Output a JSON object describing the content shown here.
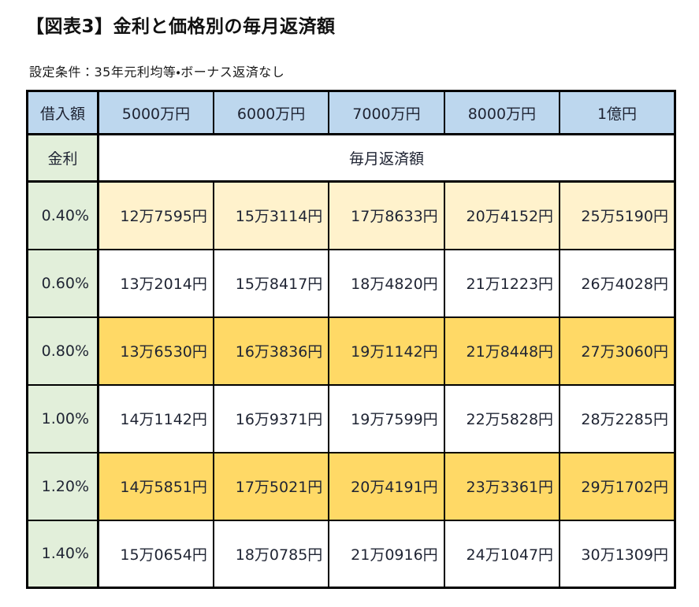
{
  "page": {
    "title": "【図表3】金利と価格別の毎月返済額",
    "subtitle": "設定条件：35年元利均等・ボーナス返済なし"
  },
  "table": {
    "corner_header": "借入額",
    "column_headers": [
      "5000万円",
      "6000万円",
      "7000万円",
      "8000万円",
      "1億円"
    ],
    "rate_header": "金利",
    "merged_subheader": "毎月返済額",
    "rows": [
      {
        "rate": "0.40%",
        "highlight": "cream",
        "values": [
          "12万7595円",
          "15万3114円",
          "17万8633円",
          "20万4152円",
          "25万5190円"
        ]
      },
      {
        "rate": "0.60%",
        "highlight": "none",
        "values": [
          "13万2014円",
          "15万8417円",
          "18万4820円",
          "21万1223円",
          "26万4028円"
        ]
      },
      {
        "rate": "0.80%",
        "highlight": "gold",
        "values": [
          "13万6530円",
          "16万3836円",
          "19万1142円",
          "21万8448円",
          "27万3060円"
        ]
      },
      {
        "rate": "1.00%",
        "highlight": "none",
        "values": [
          "14万1142円",
          "16万9371円",
          "19万7599円",
          "22万5828円",
          "28万2285円"
        ]
      },
      {
        "rate": "1.20%",
        "highlight": "gold",
        "values": [
          "14万5851円",
          "17万5021円",
          "20万4191円",
          "23万3361円",
          "29万1702円"
        ]
      },
      {
        "rate": "1.40%",
        "highlight": "none",
        "values": [
          "15万0654円",
          "18万0785円",
          "21万0916円",
          "24万1047円",
          "30万1309円"
        ]
      }
    ],
    "colors": {
      "header_blue": "#BDD7EE",
      "rate_green": "#E2EFDA",
      "row_cream": "#FFF2CC",
      "row_gold": "#FFD966",
      "border": "#000000",
      "text": "#1F2433"
    }
  }
}
